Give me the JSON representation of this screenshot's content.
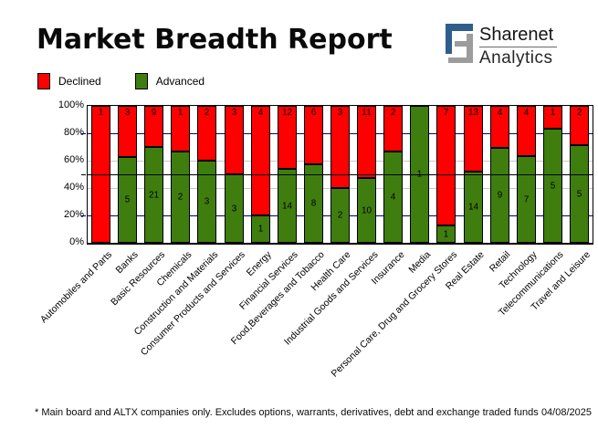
{
  "title": "Market Breadth Report",
  "logo": {
    "brand": "Sharenet",
    "sub": "Analytics",
    "icon": "sharenet-maze-s-icon",
    "blue": "#2e5e8b",
    "gray": "#9c9c9c"
  },
  "legend": {
    "items": [
      {
        "label": "Declined",
        "color": "#fe0000"
      },
      {
        "label": "Advanced",
        "color": "#3f7e0e"
      }
    ]
  },
  "footer": {
    "note": "* Main board and ALTX companies only. Excludes options, warrants, derivatives, debt and exchange traded funds",
    "date": "04/08/2025"
  },
  "chart_data": {
    "type": "bar",
    "stacked": true,
    "units": "percent_of_sector_total",
    "title": "Market Breadth Report",
    "xlabel": "",
    "ylabel": "",
    "ylim": [
      0,
      100
    ],
    "y_ticks": [
      "100%",
      "80%",
      "60%",
      "40%",
      "20%",
      "0%"
    ],
    "legend_position": "top-left",
    "gridlines": {
      "navy_at": [
        80,
        20
      ],
      "gray_at": [
        60,
        40
      ],
      "black_over_at": [
        50
      ]
    },
    "colors": {
      "declined": "#fe0000",
      "advanced": "#3f7e0e",
      "navy": "#000080",
      "gray": "#c8c8c8",
      "black": "#000000"
    },
    "categories": [
      "Automobiles and Parts",
      "Banks",
      "Basic Resources",
      "Chemicals",
      "Construction and Materials",
      "Consumer Products and Services",
      "Energy",
      "Financial Services",
      "Food,Beverages and Tobacco",
      "Health Care",
      "Industrial Goods and Services",
      "Insurance",
      "Media",
      "Personal Care, Drug and Grocery Stores",
      "Real Estate",
      "Retail",
      "Technology",
      "Telecommunications",
      "Travel and Leisure"
    ],
    "series": [
      {
        "name": "Declined",
        "color": "#fe0000",
        "values": [
          1,
          3,
          9,
          1,
          2,
          3,
          4,
          12,
          6,
          3,
          11,
          2,
          0,
          7,
          13,
          4,
          4,
          1,
          2
        ]
      },
      {
        "name": "Advanced",
        "color": "#3f7e0e",
        "values": [
          0,
          5,
          21,
          2,
          3,
          3,
          1,
          14,
          8,
          2,
          10,
          4,
          1,
          1,
          14,
          9,
          7,
          5,
          5
        ]
      }
    ]
  }
}
